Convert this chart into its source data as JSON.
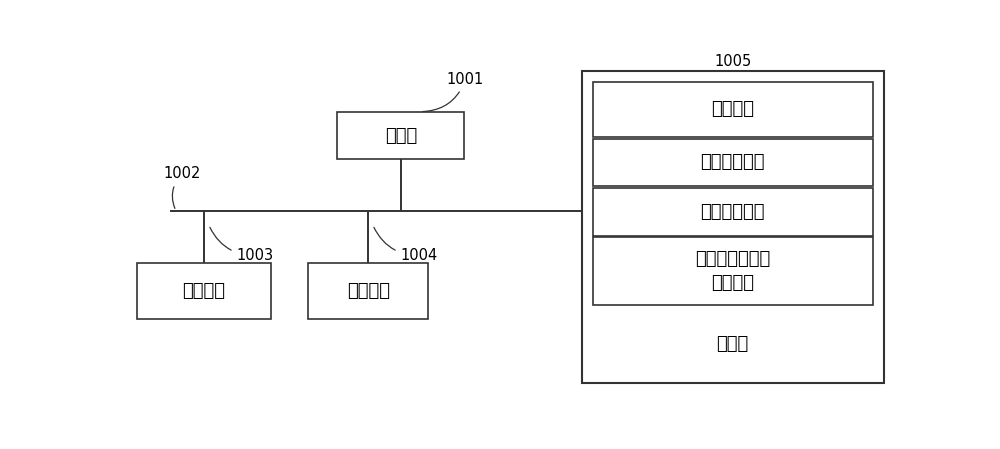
{
  "bg_color": "#ffffff",
  "line_color": "#333333",
  "box_fill": "#ffffff",
  "box_edge": "#333333",
  "text_color": "#000000",
  "processor_label": "处理器",
  "processor_id": "1001",
  "bus_id": "1002",
  "user_iface_label": "用户接口",
  "user_iface_id": "1003",
  "net_iface_label": "网络接口",
  "net_iface_id": "1004",
  "memory_id": "1005",
  "memory_label": "存储器",
  "os_label": "操作系统",
  "net_module_label": "网络通信模块",
  "user_module_label": "用户接口模块",
  "antenna_label": "天线波束指向的\n调控程序",
  "font_size_main": 13,
  "font_size_label": 10.5
}
